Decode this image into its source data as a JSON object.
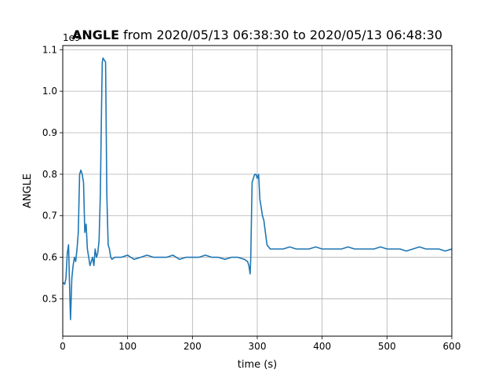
{
  "chart_data": {
    "type": "line",
    "title_bold": "ANGLE",
    "title_rest": " from 2020/05/13 06:38:30 to 2020/05/13 06:48:30",
    "xlabel": "time (s)",
    "ylabel": "ANGLE",
    "y_offset_label": "1e9",
    "xlim": [
      0,
      600
    ],
    "ylim": [
      0.41,
      1.11
    ],
    "xticks": [
      0,
      100,
      200,
      300,
      400,
      500,
      600
    ],
    "xtick_labels": [
      "0",
      "100",
      "200",
      "300",
      "400",
      "500",
      "600"
    ],
    "yticks": [
      0.5,
      0.6,
      0.7,
      0.8,
      0.9,
      1.0,
      1.1
    ],
    "ytick_labels": [
      "0.5",
      "0.6",
      "0.7",
      "0.8",
      "0.9",
      "1.0",
      "1.1"
    ],
    "grid": true,
    "series": [
      {
        "color": "#1f77b4",
        "x": [
          0,
          3,
          5,
          7,
          9,
          11,
          12,
          14,
          16,
          18,
          20,
          22,
          24,
          26,
          28,
          30,
          32,
          34,
          36,
          38,
          40,
          42,
          44,
          46,
          48,
          50,
          52,
          54,
          56,
          58,
          60,
          61,
          62,
          64,
          66,
          68,
          70,
          72,
          74,
          76,
          80,
          90,
          100,
          110,
          120,
          130,
          140,
          150,
          160,
          170,
          180,
          190,
          200,
          210,
          220,
          230,
          240,
          250,
          260,
          270,
          280,
          285,
          287,
          289,
          290,
          292,
          294,
          296,
          298,
          300,
          302,
          304,
          306,
          308,
          310,
          315,
          320,
          330,
          340,
          350,
          360,
          370,
          380,
          390,
          400,
          410,
          420,
          430,
          440,
          450,
          460,
          470,
          480,
          490,
          500,
          510,
          520,
          530,
          540,
          550,
          560,
          570,
          580,
          590,
          600
        ],
        "y": [
          0.54,
          0.535,
          0.55,
          0.61,
          0.63,
          0.5,
          0.45,
          0.55,
          0.58,
          0.6,
          0.59,
          0.62,
          0.66,
          0.8,
          0.81,
          0.8,
          0.78,
          0.66,
          0.68,
          0.62,
          0.6,
          0.58,
          0.59,
          0.6,
          0.58,
          0.62,
          0.6,
          0.61,
          0.64,
          0.75,
          0.98,
          1.07,
          1.08,
          1.075,
          1.07,
          0.75,
          0.63,
          0.62,
          0.6,
          0.595,
          0.6,
          0.6,
          0.605,
          0.595,
          0.6,
          0.605,
          0.6,
          0.6,
          0.6,
          0.605,
          0.595,
          0.6,
          0.6,
          0.6,
          0.605,
          0.6,
          0.6,
          0.595,
          0.6,
          0.6,
          0.595,
          0.59,
          0.58,
          0.56,
          0.6,
          0.78,
          0.79,
          0.8,
          0.8,
          0.79,
          0.8,
          0.74,
          0.72,
          0.7,
          0.69,
          0.63,
          0.62,
          0.62,
          0.62,
          0.625,
          0.62,
          0.62,
          0.62,
          0.625,
          0.62,
          0.62,
          0.62,
          0.62,
          0.625,
          0.62,
          0.62,
          0.62,
          0.62,
          0.625,
          0.62,
          0.62,
          0.62,
          0.615,
          0.62,
          0.625,
          0.62,
          0.62,
          0.62,
          0.615,
          0.62
        ]
      }
    ]
  }
}
